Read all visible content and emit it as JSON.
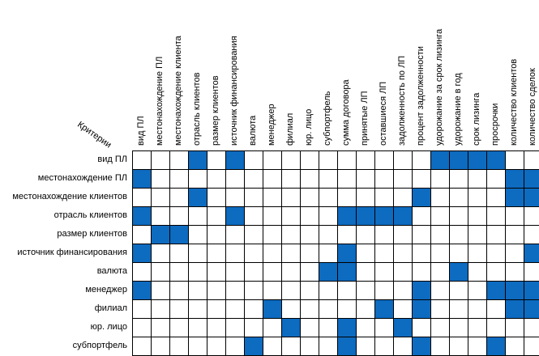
{
  "corner_label": "Критерии",
  "columns": [
    "вид ПЛ",
    "местонахождение ПЛ",
    "местонахождение клиента",
    "отрасль клиентов",
    "размер клиентов",
    "источник финансирования",
    "валюта",
    "менеджер",
    "филиал",
    "юр. лицо",
    "субпортфель",
    "сумма договора",
    "принятые ЛП",
    "оставшиеся ЛП",
    "задолженность по ЛП",
    "процент задолженности",
    "удорожание за срок лизинга",
    "удорожание в год",
    "срок лизинга",
    "просрочки",
    "количество клиентов",
    "количество сделок"
  ],
  "rows": [
    {
      "label": "вид ПЛ",
      "marked": [
        3,
        5,
        16,
        17,
        18,
        19
      ]
    },
    {
      "label": "местонахождение ПЛ",
      "marked": [
        0,
        20,
        21
      ]
    },
    {
      "label": "местонахождение клиентов",
      "marked": [
        3,
        15,
        20,
        21
      ]
    },
    {
      "label": "отрасль клиентов",
      "marked": [
        0,
        5,
        11,
        12,
        13,
        14
      ]
    },
    {
      "label": "размер клиентов",
      "marked": [
        1,
        2
      ]
    },
    {
      "label": "источник финансирования",
      "marked": [
        0,
        11,
        21
      ]
    },
    {
      "label": "валюта",
      "marked": [
        10,
        11,
        17
      ]
    },
    {
      "label": "менеджер",
      "marked": [
        0,
        15,
        19,
        20,
        21
      ]
    },
    {
      "label": "филиал",
      "marked": [
        7,
        13,
        15,
        20,
        21
      ]
    },
    {
      "label": "юр. лицо",
      "marked": [
        8,
        11,
        14
      ]
    },
    {
      "label": "субпортфель",
      "marked": [
        6,
        11,
        15,
        19
      ]
    }
  ],
  "colors": {
    "marked": "#0d6bc0",
    "empty": "#ffffff",
    "grid": "#000000"
  }
}
